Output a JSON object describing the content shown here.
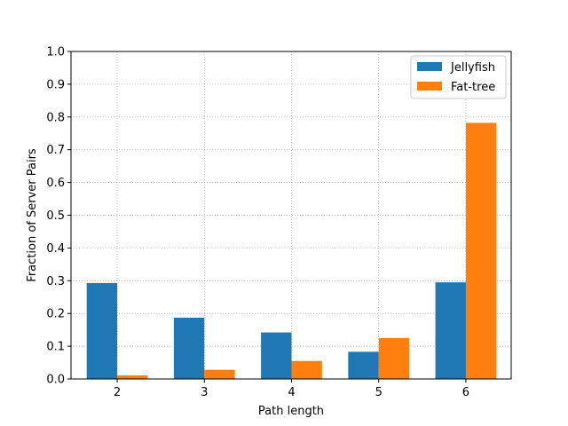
{
  "chart_data": {
    "type": "bar",
    "categories": [
      "2",
      "3",
      "4",
      "5",
      "6"
    ],
    "series": [
      {
        "name": "Jellyfish",
        "color": "#1f77b4",
        "values": [
          0.293,
          0.187,
          0.142,
          0.083,
          0.295
        ]
      },
      {
        "name": "Fat-tree",
        "color": "#ff7f0e",
        "values": [
          0.011,
          0.028,
          0.055,
          0.125,
          0.782
        ]
      }
    ],
    "xlabel": "Path length",
    "ylabel": "Fraction of Server Pairs",
    "ylim": [
      0,
      1.0
    ],
    "yticks": [
      "0.0",
      "0.1",
      "0.2",
      "0.3",
      "0.4",
      "0.5",
      "0.6",
      "0.7",
      "0.8",
      "0.9",
      "1.0"
    ],
    "grid": true,
    "legend_position": "top-right"
  }
}
